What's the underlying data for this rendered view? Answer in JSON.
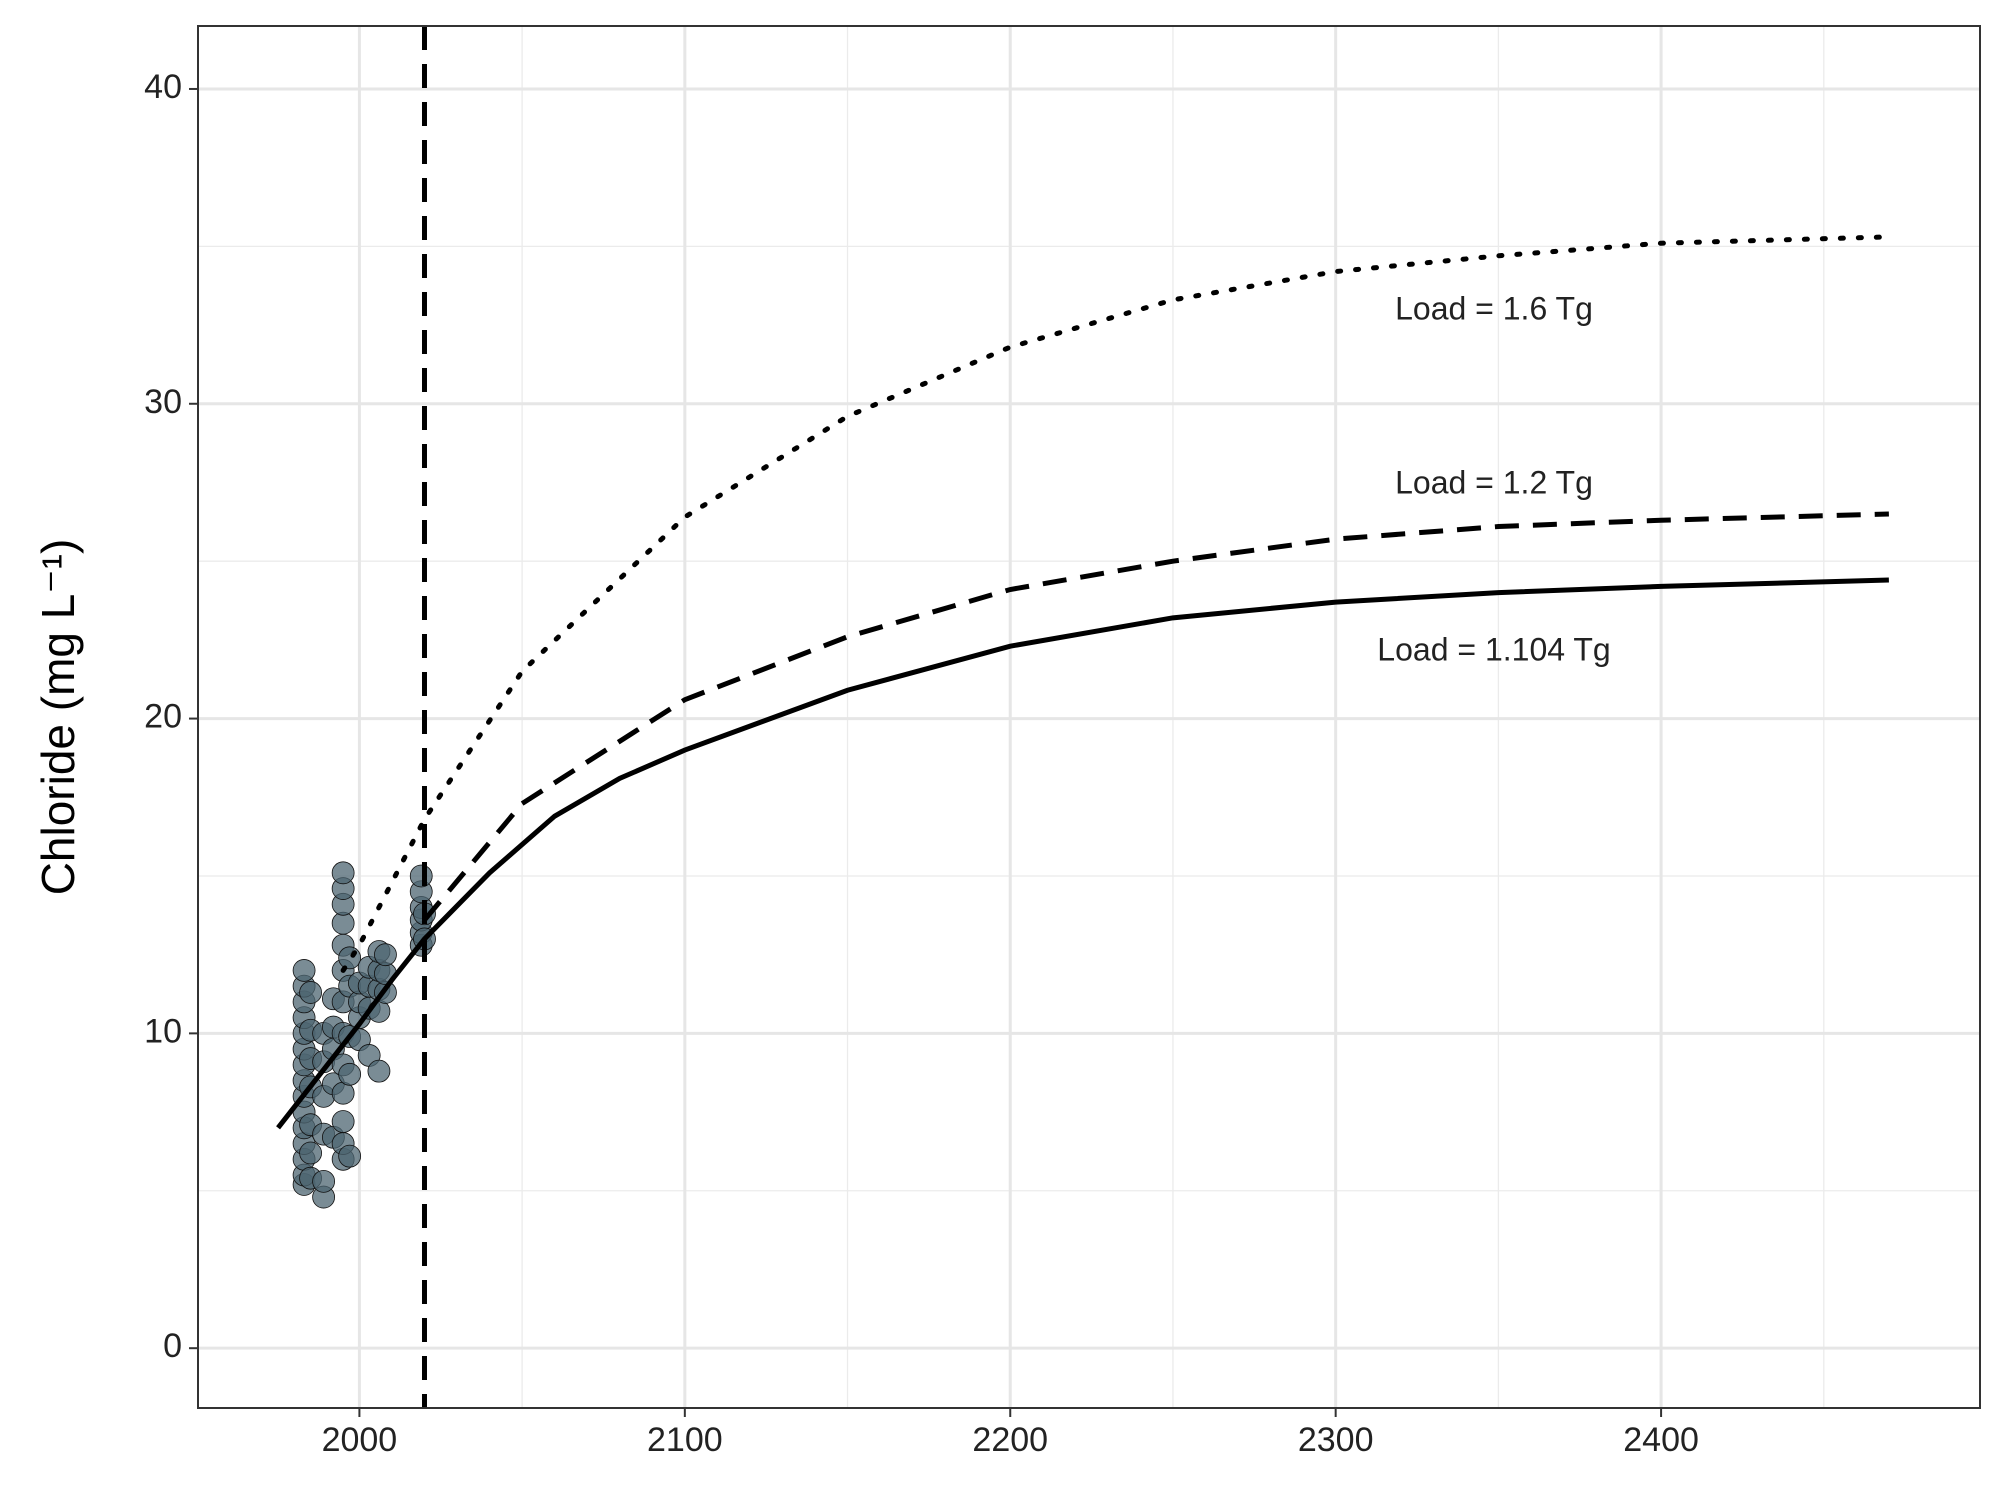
{
  "chart_data": {
    "type": "line",
    "ylabel": "Chloride (mg L⁻¹)",
    "xlim": [
      1950.4,
      2498
    ],
    "ylim": [
      -1.9,
      42.0
    ],
    "xticks": [
      2000,
      2100,
      2200,
      2300,
      2400
    ],
    "yticks": [
      0,
      10,
      20,
      30,
      40
    ],
    "xminor": [
      1950,
      2050,
      2150,
      2250,
      2350,
      2450
    ],
    "yminor": [
      5,
      15,
      25,
      35
    ],
    "grid": true,
    "vline": 2020,
    "points": {
      "color": "#4e6572",
      "x": [
        1983,
        1983,
        1983,
        1983,
        1983,
        1983,
        1983,
        1983,
        1983,
        1983,
        1983,
        1983,
        1983,
        1983,
        1983,
        1985,
        1985,
        1985,
        1985,
        1985,
        1985,
        1985,
        1989,
        1989,
        1989,
        1989,
        1989,
        1989,
        1992,
        1992,
        1992,
        1992,
        1992,
        1995,
        1995,
        1995,
        1995,
        1995,
        1995,
        1995,
        1995,
        1995,
        1995,
        1995,
        1995,
        1995,
        1997,
        1997,
        1997,
        1997,
        1997,
        2000,
        2000,
        2000,
        2000,
        2003,
        2003,
        2003,
        2003,
        2006,
        2006,
        2006,
        2006,
        2006,
        2008,
        2008,
        2008,
        2019,
        2019,
        2019,
        2019,
        2019,
        2019,
        2020,
        2020
      ],
      "y": [
        5.2,
        5.5,
        6.0,
        6.5,
        7.0,
        7.5,
        8.0,
        8.5,
        9.0,
        9.5,
        10.0,
        10.5,
        11.0,
        11.5,
        12.0,
        5.4,
        6.2,
        7.1,
        8.3,
        9.2,
        10.1,
        11.3,
        4.8,
        5.3,
        6.8,
        8.0,
        9.1,
        10.0,
        6.7,
        8.4,
        9.5,
        10.2,
        11.1,
        6.0,
        6.5,
        7.2,
        8.1,
        9.0,
        10.0,
        11.0,
        12.0,
        12.8,
        13.5,
        14.1,
        14.6,
        15.1,
        6.1,
        8.7,
        9.9,
        11.5,
        12.4,
        9.8,
        10.5,
        11.0,
        11.6,
        9.3,
        10.8,
        11.5,
        12.1,
        8.8,
        10.7,
        11.4,
        12.0,
        12.6,
        11.3,
        11.9,
        12.5,
        12.8,
        13.2,
        13.6,
        14.0,
        14.5,
        15.0,
        13.0,
        13.8
      ]
    },
    "series": [
      {
        "name": "Load = 1.6 Tg",
        "color": "#000000",
        "dash": "dotted",
        "x": [
          1995,
          2000,
          2020,
          2050,
          2100,
          2150,
          2200,
          2250,
          2300,
          2350,
          2400,
          2470
        ],
        "values": [
          12.0,
          12.8,
          16.8,
          21.5,
          26.4,
          29.6,
          31.8,
          33.3,
          34.2,
          34.7,
          35.1,
          35.3
        ]
      },
      {
        "name": "Load = 1.2 Tg",
        "color": "#000000",
        "dash": "dashed",
        "x": [
          2020,
          2050,
          2100,
          2150,
          2200,
          2250,
          2300,
          2350,
          2400,
          2470
        ],
        "values": [
          13.6,
          17.3,
          20.6,
          22.6,
          24.1,
          25.0,
          25.7,
          26.1,
          26.3,
          26.5
        ]
      },
      {
        "name": "Load = 1.104 Tg",
        "color": "#000000",
        "dash": "solid",
        "x": [
          1975,
          2000,
          2010,
          2020,
          2040,
          2060,
          2080,
          2100,
          2150,
          2200,
          2250,
          2300,
          2350,
          2400,
          2470
        ],
        "values": [
          7.0,
          10.3,
          11.7,
          13.0,
          15.1,
          16.9,
          18.1,
          19.0,
          20.9,
          22.3,
          23.2,
          23.7,
          24.0,
          24.2,
          24.4
        ]
      }
    ]
  }
}
